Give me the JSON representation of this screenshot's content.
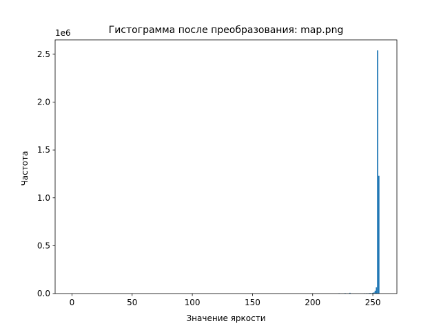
{
  "chart_data": {
    "type": "bar",
    "title": "Гистограмма после преобразования: map.png",
    "xlabel": "Значение яркости",
    "ylabel": "Частота",
    "y_offset_label": "1e6",
    "xlim": [
      -14,
      270
    ],
    "ylim": [
      0,
      2650000
    ],
    "x_ticks": [
      0,
      50,
      100,
      150,
      200,
      250
    ],
    "x_tick_labels": [
      "0",
      "50",
      "100",
      "150",
      "200",
      "250"
    ],
    "y_ticks": [
      0,
      500000,
      1000000,
      1500000,
      2000000,
      2500000
    ],
    "y_tick_labels": [
      "0.0",
      "0.5",
      "1.0",
      "1.5",
      "2.0",
      "2.5"
    ],
    "bar_width": 1,
    "bar_color": "#1f77b4",
    "grid": false,
    "legend": "none",
    "x": [
      222,
      227,
      231,
      243,
      245,
      247,
      248,
      249,
      250,
      251,
      252,
      253,
      254,
      255
    ],
    "values": [
      4000,
      5000,
      8000,
      3000,
      4000,
      5000,
      6000,
      3000,
      8000,
      12000,
      30000,
      65000,
      2540000,
      1230000
    ]
  }
}
